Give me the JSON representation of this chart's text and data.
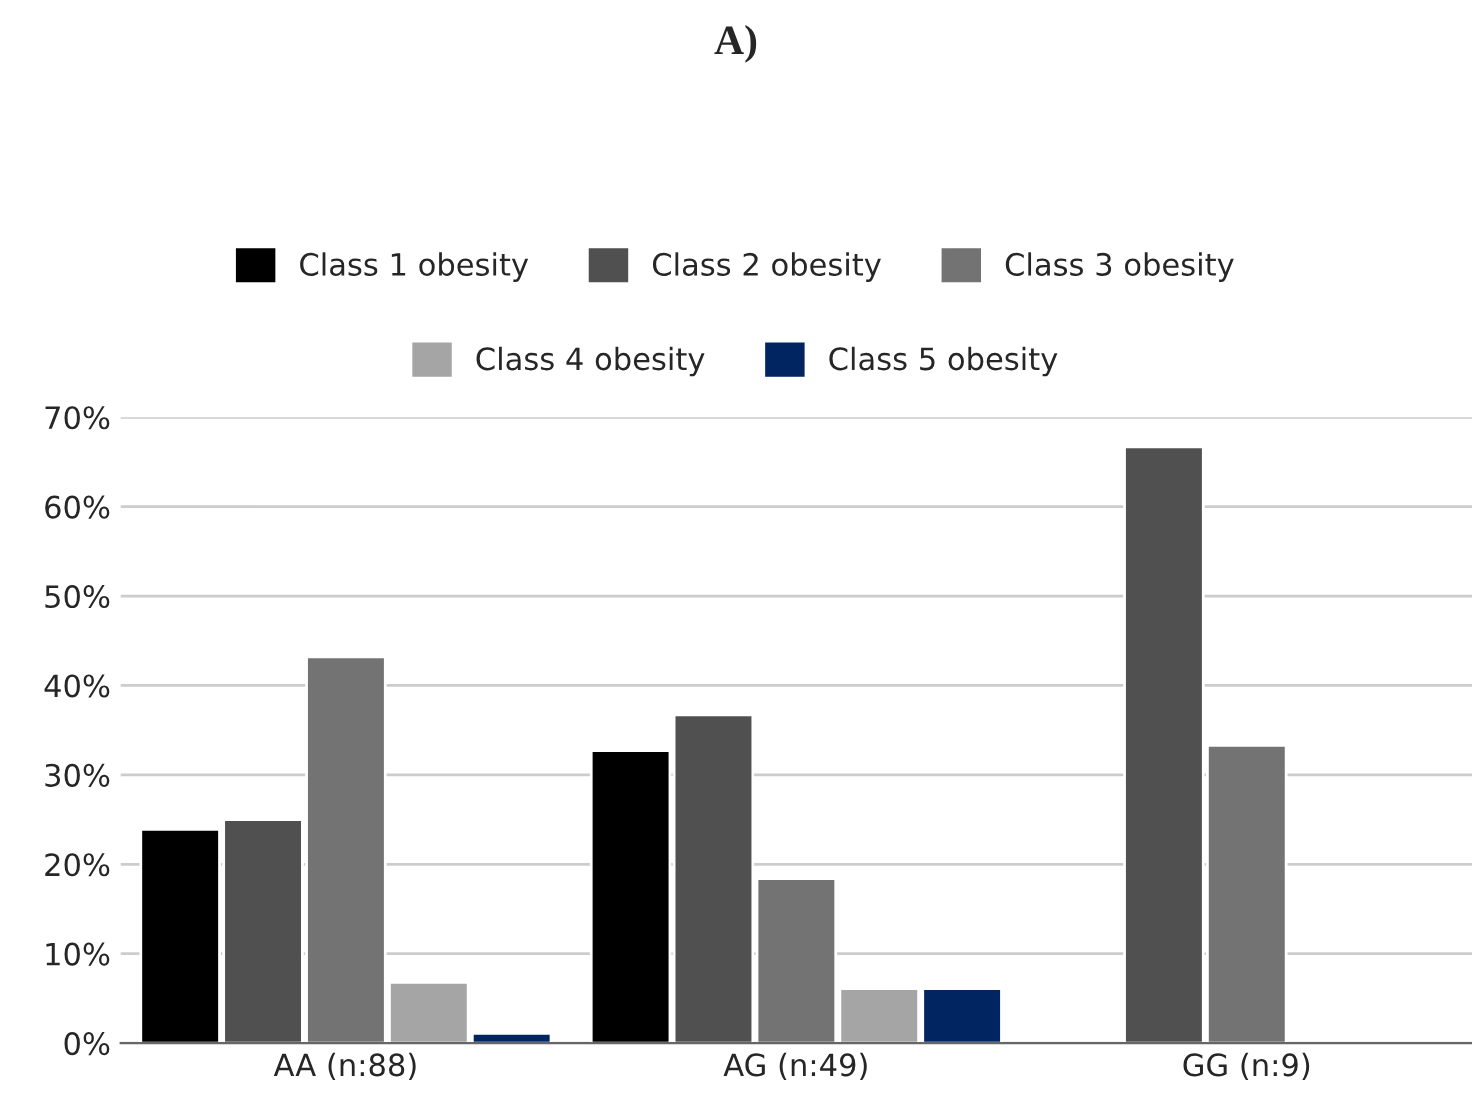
{
  "chart_data": {
    "type": "bar",
    "title": "A)",
    "categories": [
      "AA (n:88)",
      "AG (n:49)",
      "GG (n:9)"
    ],
    "series": [
      {
        "name": "Class 1 obesity",
        "color": "#000000",
        "values": [
          23.9,
          32.7,
          null
        ]
      },
      {
        "name": "Class 2 obesity",
        "color": "#505050",
        "values": [
          25.0,
          36.7,
          66.7
        ]
      },
      {
        "name": "Class 3 obesity",
        "color": "#737373",
        "values": [
          43.2,
          18.4,
          33.3
        ]
      },
      {
        "name": "Class 4 obesity",
        "color": "#a5a5a5",
        "values": [
          6.8,
          6.1,
          null
        ]
      },
      {
        "name": "Class 5 obesity",
        "color": "#002560",
        "values": [
          1.1,
          6.1,
          null
        ]
      }
    ],
    "ylim": [
      0,
      70
    ],
    "yticks": [
      {
        "value": 0,
        "label": "0%"
      },
      {
        "value": 10,
        "label": "10%"
      },
      {
        "value": 20,
        "label": "20%"
      },
      {
        "value": 30,
        "label": "30%"
      },
      {
        "value": 40,
        "label": "40%"
      },
      {
        "value": 50,
        "label": "50%"
      },
      {
        "value": 60,
        "label": "60%"
      },
      {
        "value": 70,
        "label": "70%"
      }
    ],
    "grid": "y",
    "legend": "top"
  }
}
